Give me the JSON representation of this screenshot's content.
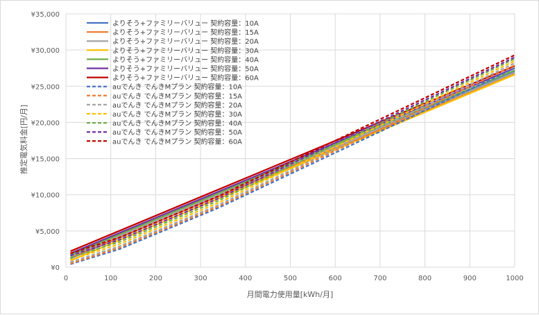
{
  "chart_data": {
    "type": "line",
    "xlabel": "月間電力使用量[kWh/月]",
    "ylabel": "推定電気料金[円/月]",
    "xlim": [
      0,
      1000
    ],
    "ylim": [
      0,
      35000
    ],
    "x_ticks": [
      "0",
      "100",
      "200",
      "300",
      "400",
      "500",
      "600",
      "700",
      "800",
      "900",
      "1000"
    ],
    "y_ticks": [
      "¥0",
      "¥5,000",
      "¥10,000",
      "¥15,000",
      "¥20,000",
      "¥25,000",
      "¥30,000",
      "¥35,000"
    ],
    "grid": true,
    "legend_position": "top-left",
    "series": [
      {
        "name": "よりそう+ファミリーバリュー 契約容量：10A",
        "color": "#4472C4",
        "dash": false,
        "x": [
          10,
          1000
        ],
        "y": [
          1200,
          27100
        ]
      },
      {
        "name": "よりそう+ファミリーバリュー 契約容量：15A",
        "color": "#ED7D31",
        "dash": false,
        "x": [
          10,
          1000
        ],
        "y": [
          1300,
          26700
        ]
      },
      {
        "name": "よりそう+ファミリーバリュー 契約容量：20A",
        "color": "#A5A5A5",
        "dash": false,
        "x": [
          10,
          1000
        ],
        "y": [
          1500,
          26900
        ]
      },
      {
        "name": "よりそう+ファミリーバリュー 契約容量：30A",
        "color": "#FFC000",
        "dash": false,
        "x": [
          10,
          1000
        ],
        "y": [
          900,
          26600
        ]
      },
      {
        "name": "よりそう+ファミリーバリュー 契約容量：40A",
        "color": "#70AD47",
        "dash": false,
        "x": [
          10,
          1000
        ],
        "y": [
          1700,
          27200
        ]
      },
      {
        "name": "よりそう+ファミリーバリュー 契約容量：50A",
        "color": "#7030A0",
        "dash": false,
        "x": [
          10,
          1000
        ],
        "y": [
          1900,
          27500
        ]
      },
      {
        "name": "よりそう+ファミリーバリュー 契約容量：60A",
        "color": "#C00000",
        "dash": false,
        "x": [
          10,
          1000
        ],
        "y": [
          2200,
          27800
        ]
      },
      {
        "name": "auでんき でんきMプラン 契約容量：10A",
        "color": "#4472C4",
        "dash": true,
        "x": [
          10,
          120,
          340,
          1000
        ],
        "y": [
          400,
          2500,
          8200,
          27500
        ]
      },
      {
        "name": "auでんき でんきMプラン 契約容量：15A",
        "color": "#ED7D31",
        "dash": true,
        "x": [
          10,
          120,
          340,
          1000
        ],
        "y": [
          500,
          2700,
          8400,
          27900
        ]
      },
      {
        "name": "auでんき でんきMプラン 契約容量：20A",
        "color": "#A5A5A5",
        "dash": true,
        "x": [
          10,
          120,
          340,
          1000
        ],
        "y": [
          700,
          2900,
          8600,
          28200
        ]
      },
      {
        "name": "auでんき でんきMプラン 契約容量：30A",
        "color": "#FFC000",
        "dash": true,
        "x": [
          10,
          120,
          340,
          1000
        ],
        "y": [
          1000,
          3200,
          8900,
          28500
        ]
      },
      {
        "name": "auでんき でんきMプラン 契約容量：40A",
        "color": "#70AD47",
        "dash": true,
        "x": [
          10,
          120,
          340,
          1000
        ],
        "y": [
          1300,
          3500,
          9200,
          28800
        ]
      },
      {
        "name": "auでんき でんきMプラン 契約容量：50A",
        "color": "#7030A0",
        "dash": true,
        "x": [
          10,
          120,
          340,
          1000
        ],
        "y": [
          1600,
          3800,
          9500,
          29000
        ]
      },
      {
        "name": "auでんき でんきMプラン 契約容量：60A",
        "color": "#C00000",
        "dash": true,
        "x": [
          10,
          120,
          340,
          1000
        ],
        "y": [
          1900,
          4100,
          9800,
          29300
        ]
      }
    ]
  }
}
